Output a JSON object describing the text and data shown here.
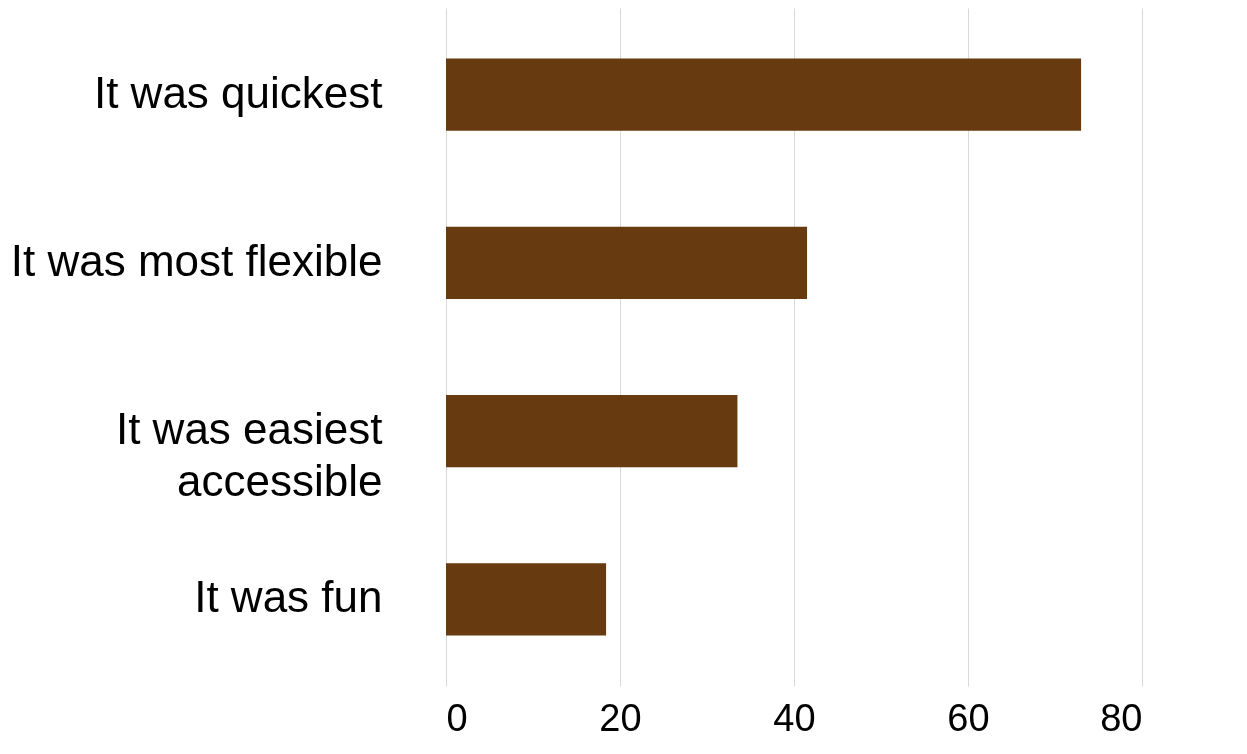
{
  "chart_data": {
    "type": "bar",
    "orientation": "horizontal",
    "categories": [
      "It was quickest",
      "It was most flexible",
      "It was easiest accessible",
      "It was fun"
    ],
    "values": [
      73,
      41.5,
      33.5,
      18.4
    ],
    "color": "#683a10",
    "xlim": [
      0,
      80
    ],
    "xticks": [
      0,
      20,
      40,
      60,
      80
    ],
    "grid": "x"
  }
}
